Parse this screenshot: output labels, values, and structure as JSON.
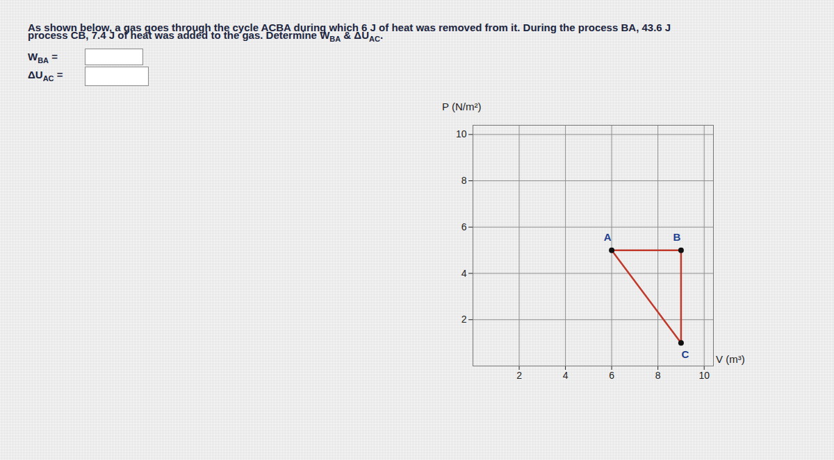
{
  "question": {
    "line1": [
      {
        "t": "As shown below, a gas goes through the cycle ACBA during which 6 J of heat was removed from it. During the process BA, 43.6 J"
      }
    ],
    "line2": [
      {
        "t": "process CB, 7.4 J of heat was added to the gas. Determine "
      },
      {
        "t": "W",
        "sub": "BA"
      },
      {
        "t": " & "
      },
      {
        "t": "ΔU",
        "sub": "AC"
      },
      {
        "t": "."
      }
    ]
  },
  "inputs": [
    {
      "t": "W",
      "sub": "BA",
      "suffix": " ="
    },
    {
      "t": "ΔU",
      "sub": "AC",
      "suffix": " ="
    }
  ],
  "chart_data": {
    "type": "line",
    "x_label": "V (m³)",
    "y_label": "P (N/m²)",
    "point_labels": [
      "A",
      "B",
      "C"
    ],
    "x": [
      6,
      9,
      9
    ],
    "y": [
      5,
      5,
      1
    ],
    "cycle": [
      "A",
      "C",
      "B",
      "A"
    ],
    "color": "#c0392b",
    "marker": "circle",
    "xlim": [
      0,
      10.4
    ],
    "ylim": [
      0,
      10.4
    ],
    "xticks": [
      2,
      4,
      6,
      8,
      10
    ],
    "yticks": [
      2,
      4,
      6,
      8,
      10
    ],
    "grid": true
  }
}
